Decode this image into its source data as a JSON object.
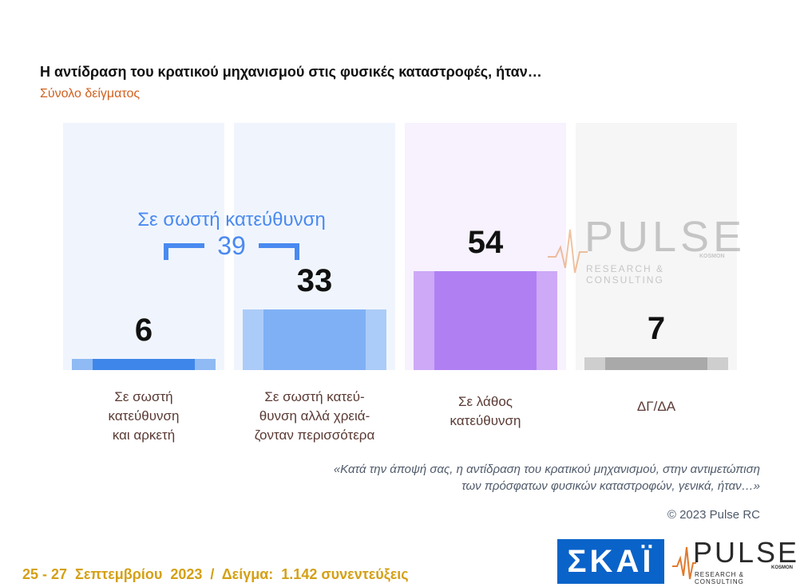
{
  "title": "Η αντίδραση του κρατικού μηχανισμού στις φυσικές καταστροφές, ήταν…",
  "subtitle": "Σύνολο δείγματος",
  "chart_data": {
    "type": "bar",
    "categories": [
      "Σε σωστή\nκατεύθυνση\nκαι αρκετή",
      "Σε σωστή κατεύ-\nθυνση αλλά χρειά-\nζονταν περισσότερα",
      "Σε λάθος\nκατεύθυνση",
      "ΔΓ/ΔΑ"
    ],
    "values": [
      6,
      33,
      54,
      7
    ],
    "value_labels": [
      "6",
      "33",
      "54",
      "7"
    ],
    "ylim": [
      0,
      100
    ],
    "grid": false,
    "colors": {
      "panels": [
        "#f0f5fd",
        "#f0f5fd",
        "#f7f2fd",
        "#f6f6f6"
      ],
      "bars": [
        "#3f86ea",
        "#7fb0f5",
        "#b080f3",
        "#a9a9a9"
      ],
      "bar_edges": [
        "#8fbaf3",
        "#abccf8",
        "#cda9f7",
        "#cecece"
      ]
    },
    "annotation": {
      "text": "Σε σωστή κατεύθυνση",
      "value": "39",
      "spans_categories": [
        0,
        1
      ],
      "color": "#4a8af0"
    }
  },
  "watermark": {
    "word": "PULSE",
    "sub": "RESEARCH & CONSULTING",
    "small": "KOSMON"
  },
  "question_text": "«Κατά την άποψή σας, η αντίδραση του κρατικού μηχανισμού, στην αντιμετώπιση των πρόσφατων φυσικών καταστροφών, γενικά, ήταν…»",
  "copyright": "© 2023 Pulse RC",
  "footer": "25 - 27  Σεπτεμβρίου  2023  /  Δείγμα:  1.142 συνεντεύξεις",
  "logos": {
    "skai": "ΣΚΑΪ",
    "pulse_word": "PULSE",
    "pulse_sub": "RESEARCH & CONSULTING",
    "pulse_small": "KOSMON"
  }
}
